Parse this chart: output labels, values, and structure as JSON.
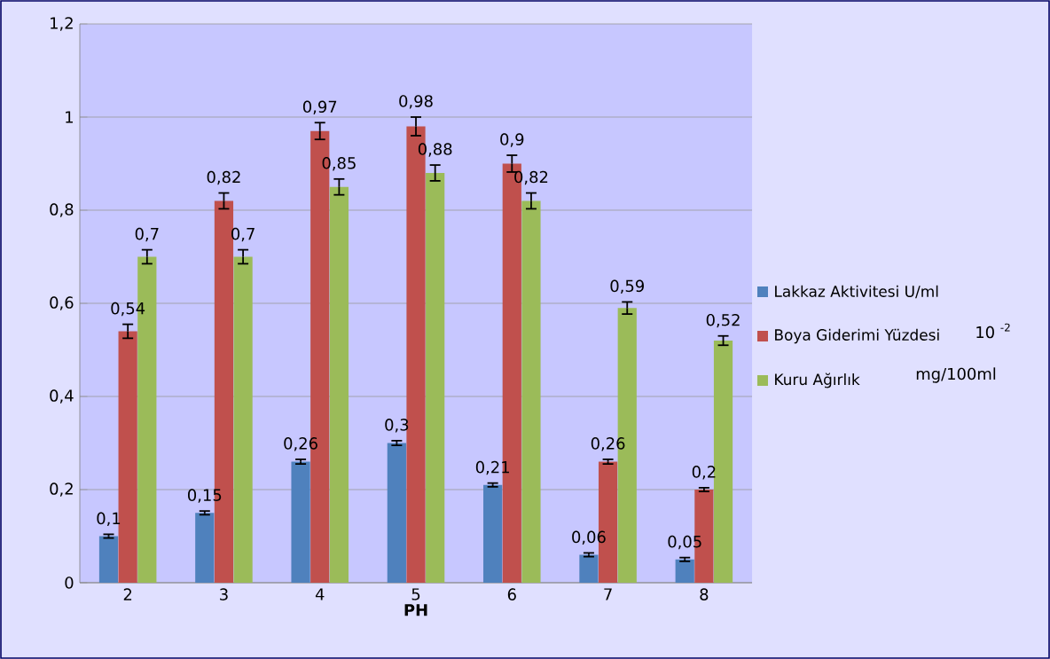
{
  "chart_data": {
    "type": "bar",
    "xlabel": "PH",
    "categories": [
      "2",
      "3",
      "4",
      "5",
      "6",
      "7",
      "8"
    ],
    "series": [
      {
        "name": "Lakkaz Aktivitesi U/ml",
        "color": "#4f81bd",
        "values": [
          0.1,
          0.15,
          0.26,
          0.3,
          0.21,
          0.06,
          0.05
        ],
        "errors": [
          0.004,
          0.004,
          0.005,
          0.005,
          0.004,
          0.004,
          0.004
        ],
        "value_labels": [
          "0,1",
          "0,15",
          "0,26",
          "0,3",
          "0,21",
          "0,06",
          "0,05"
        ]
      },
      {
        "name": "Boya Giderimi Yüzdesi",
        "color": "#c0504d",
        "values": [
          0.54,
          0.82,
          0.97,
          0.98,
          0.9,
          0.26,
          0.2
        ],
        "errors": [
          0.015,
          0.017,
          0.018,
          0.02,
          0.018,
          0.005,
          0.004
        ],
        "value_labels": [
          "0,54",
          "0,82",
          "0,97",
          "0,98",
          "0,9",
          "0,26",
          "0,2"
        ]
      },
      {
        "name": "Kuru Ağırlık",
        "color": "#9bbb59",
        "values": [
          0.7,
          0.7,
          0.85,
          0.88,
          0.82,
          0.59,
          0.52
        ],
        "errors": [
          0.015,
          0.015,
          0.017,
          0.017,
          0.017,
          0.013,
          0.01
        ],
        "value_labels": [
          "0,7",
          "0,7",
          "0,85",
          "0,88",
          "0,82",
          "0,59",
          "0,52"
        ]
      }
    ],
    "ylim": [
      0,
      1.2
    ],
    "yticks": [
      {
        "value": 0,
        "label": "0"
      },
      {
        "value": 0.2,
        "label": "0,2"
      },
      {
        "value": 0.4,
        "label": "0,4"
      },
      {
        "value": 0.6,
        "label": "0,6"
      },
      {
        "value": 0.8,
        "label": "0,8"
      },
      {
        "value": 1,
        "label": "1"
      },
      {
        "value": 1.2,
        "label": "1,2"
      }
    ],
    "grid": "y",
    "legend": "right",
    "annotations": [
      "10 $^{-2}$",
      "mg/100ml"
    ]
  }
}
